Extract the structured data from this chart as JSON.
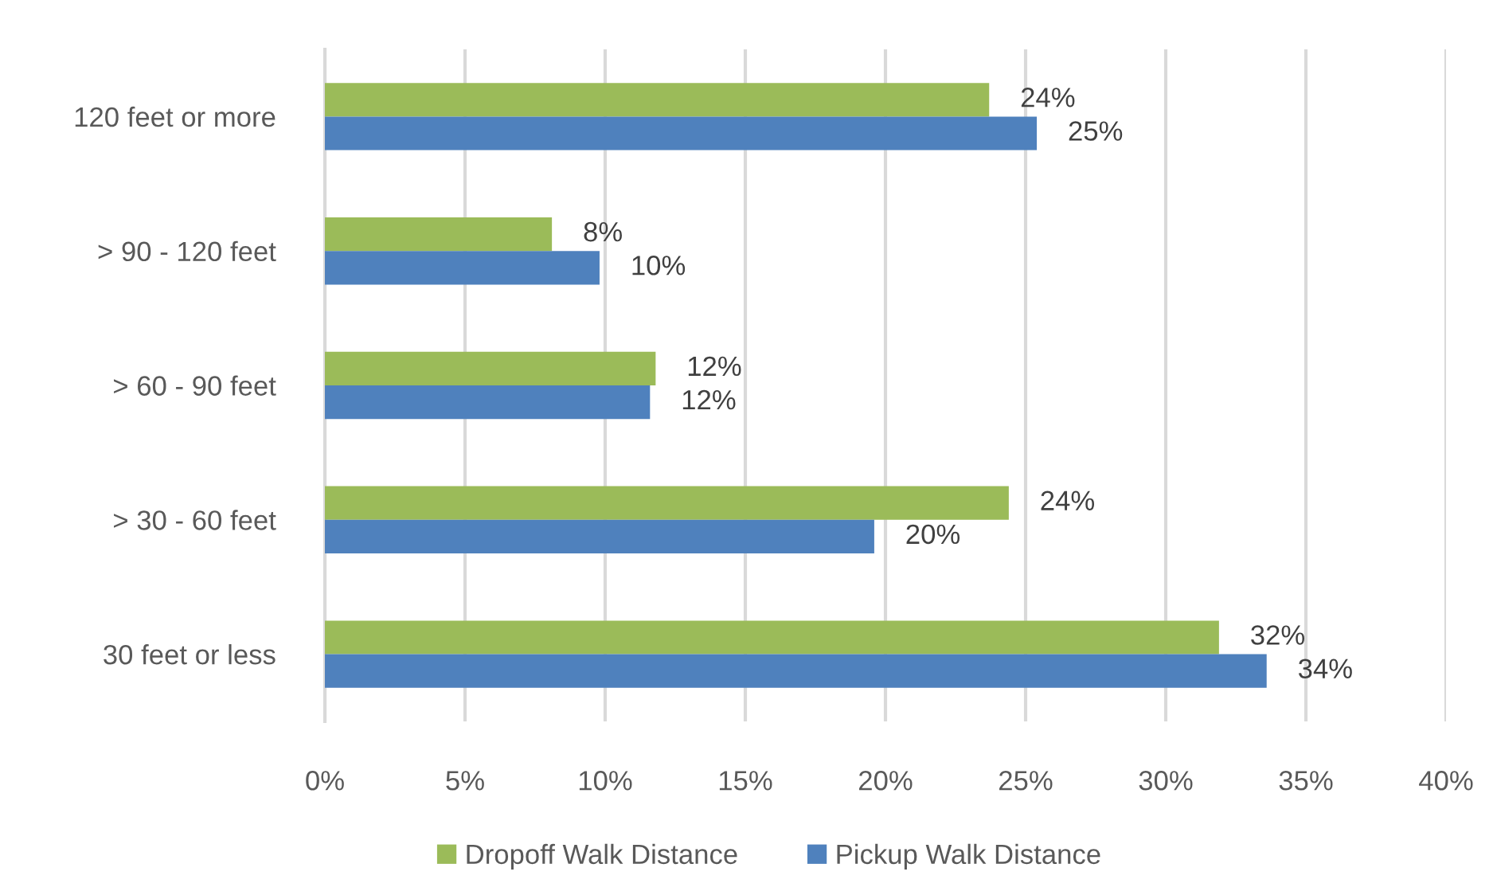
{
  "chart_data": {
    "type": "bar",
    "orientation": "horizontal",
    "categories": [
      "120 feet or more",
      "> 90 - 120 feet",
      "> 60 - 90 feet",
      "> 30 - 60 feet",
      "30 feet or less"
    ],
    "series": [
      {
        "name": "Dropoff Walk Distance",
        "color": "#9bbb59",
        "values": [
          23.7,
          8.1,
          11.8,
          24.4,
          31.9
        ],
        "value_labels": [
          "24%",
          "8%",
          "12%",
          "24%",
          "32%"
        ]
      },
      {
        "name": "Pickup Walk Distance",
        "color": "#4f81bd",
        "values": [
          25.4,
          9.8,
          11.6,
          19.6,
          33.6
        ],
        "value_labels": [
          "25%",
          "10%",
          "12%",
          "20%",
          "34%"
        ]
      }
    ],
    "xlim": [
      0,
      40
    ],
    "xticks": [
      {
        "value": 0,
        "label": "0%"
      },
      {
        "value": 5,
        "label": "5%"
      },
      {
        "value": 10,
        "label": "10%"
      },
      {
        "value": 15,
        "label": "15%"
      },
      {
        "value": 20,
        "label": "20%"
      },
      {
        "value": 25,
        "label": "25%"
      },
      {
        "value": 30,
        "label": "30%"
      },
      {
        "value": 35,
        "label": "35%"
      },
      {
        "value": 40,
        "label": "40%"
      }
    ],
    "grid": "x",
    "legend": "bottom"
  }
}
